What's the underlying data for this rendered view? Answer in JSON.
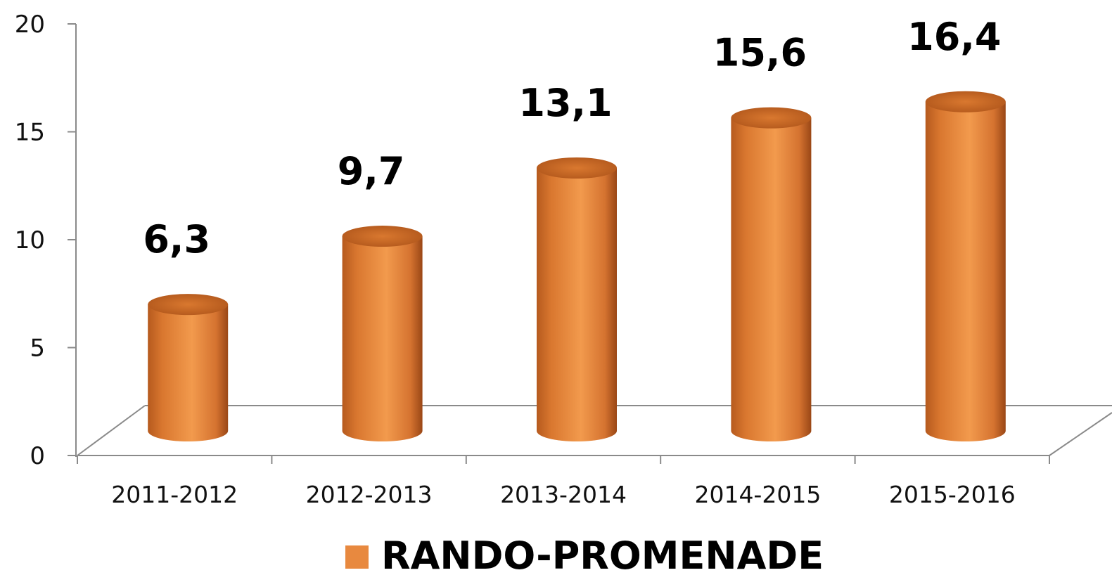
{
  "chart_data": {
    "type": "bar",
    "categories": [
      "2011-2012",
      "2012-2013",
      "2013-2014",
      "2014-2015",
      "2015-2016"
    ],
    "series": [
      {
        "name": "RANDO-PROMENADE",
        "values": [
          6.3,
          9.7,
          13.1,
          15.6,
          16.4
        ],
        "color": "#E8893F"
      }
    ],
    "data_labels": [
      "6,3",
      "9,7",
      "13,1",
      "15,6",
      "16,4"
    ],
    "yticks": [
      "0",
      "5",
      "10",
      "15",
      "20"
    ],
    "ylim": [
      0,
      20
    ],
    "legend": "bottom",
    "grid": false,
    "style": "3d-cylinder"
  }
}
